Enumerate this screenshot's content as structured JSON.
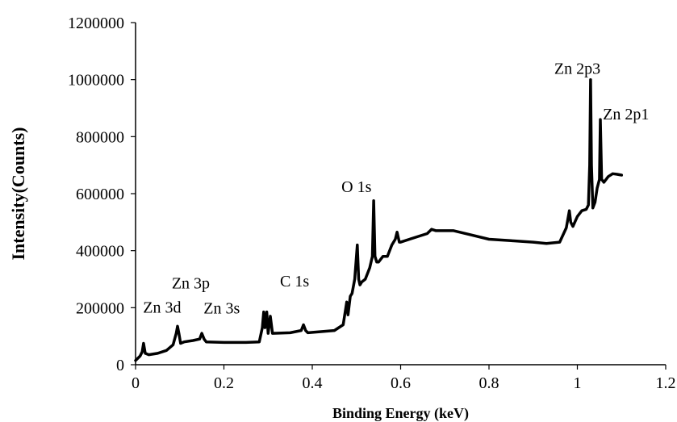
{
  "chart_data": {
    "type": "line",
    "title": "",
    "xlabel": "Binding Energy (keV)",
    "ylabel": "Intensity(Counts)",
    "xlim": [
      0,
      1.2
    ],
    "ylim": [
      0,
      1200000
    ],
    "x_ticks": [
      "0",
      "0.2",
      "0.4",
      "0.6",
      "0.8",
      "1",
      "1.2"
    ],
    "y_ticks": [
      "0",
      "200000",
      "400000",
      "600000",
      "800000",
      "1000000",
      "1200000"
    ],
    "grid": false,
    "legend": "none",
    "line_color": "#000000",
    "series": [
      {
        "x": [
          0.0,
          0.01,
          0.015,
          0.018,
          0.022,
          0.03,
          0.05,
          0.07,
          0.085,
          0.092,
          0.095,
          0.098,
          0.102,
          0.11,
          0.13,
          0.145,
          0.15,
          0.155,
          0.16,
          0.2,
          0.25,
          0.28,
          0.287,
          0.29,
          0.293,
          0.297,
          0.3,
          0.305,
          0.31,
          0.35,
          0.375,
          0.38,
          0.385,
          0.39,
          0.45,
          0.47,
          0.478,
          0.481,
          0.486,
          0.49,
          0.496,
          0.502,
          0.505,
          0.508,
          0.512,
          0.52,
          0.53,
          0.536,
          0.539,
          0.542,
          0.546,
          0.55,
          0.56,
          0.57,
          0.58,
          0.588,
          0.592,
          0.597,
          0.6,
          0.62,
          0.64,
          0.66,
          0.67,
          0.68,
          0.72,
          0.76,
          0.8,
          0.85,
          0.9,
          0.93,
          0.96,
          0.975,
          0.982,
          0.985,
          0.99,
          1.0,
          1.01,
          1.02,
          1.025,
          1.028,
          1.03,
          1.032,
          1.035,
          1.04,
          1.045,
          1.05,
          1.052,
          1.055,
          1.06,
          1.07,
          1.08,
          1.09,
          1.1
        ],
        "y": [
          15000,
          30000,
          45000,
          75000,
          40000,
          35000,
          40000,
          50000,
          70000,
          110000,
          135000,
          110000,
          75000,
          80000,
          85000,
          90000,
          110000,
          90000,
          80000,
          78000,
          78000,
          80000,
          130000,
          185000,
          130000,
          185000,
          110000,
          170000,
          110000,
          112000,
          120000,
          140000,
          120000,
          112000,
          120000,
          140000,
          220000,
          175000,
          240000,
          250000,
          300000,
          420000,
          300000,
          280000,
          290000,
          300000,
          340000,
          380000,
          575000,
          380000,
          360000,
          360000,
          380000,
          380000,
          420000,
          440000,
          465000,
          430000,
          430000,
          440000,
          450000,
          460000,
          475000,
          470000,
          470000,
          455000,
          440000,
          435000,
          430000,
          425000,
          430000,
          480000,
          540000,
          500000,
          485000,
          520000,
          540000,
          545000,
          560000,
          700000,
          1000000,
          700000,
          550000,
          570000,
          620000,
          650000,
          860000,
          650000,
          640000,
          660000,
          670000,
          668000,
          665000
        ]
      }
    ],
    "annotations": [
      {
        "text": "Zn 3d",
        "x": 0.06,
        "y": 182000,
        "anchor": "middle"
      },
      {
        "text": "Zn 3p",
        "x": 0.125,
        "y": 268000,
        "anchor": "middle"
      },
      {
        "text": "Zn 3s",
        "x": 0.195,
        "y": 180000,
        "anchor": "middle"
      },
      {
        "text": "C 1s",
        "x": 0.36,
        "y": 275000,
        "anchor": "middle"
      },
      {
        "text": "O 1s",
        "x": 0.5,
        "y": 605000,
        "anchor": "middle"
      },
      {
        "text": "Zn 2p3",
        "x": 1.0,
        "y": 1020000,
        "anchor": "middle"
      },
      {
        "text": "Zn 2p1",
        "x": 1.11,
        "y": 860000,
        "anchor": "middle"
      }
    ]
  }
}
